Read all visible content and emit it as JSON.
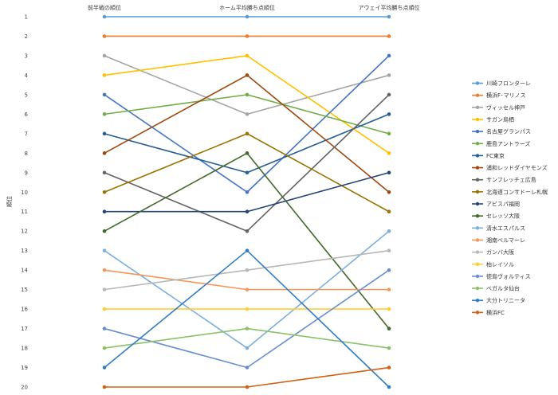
{
  "chart_data": {
    "type": "line",
    "title": "",
    "xlabel": "",
    "ylabel": "順位",
    "categories": [
      "前半戦の順位",
      "ホーム平均勝ち点順位",
      "アウェイ平均勝ち点順位"
    ],
    "y_ticks": [
      "1",
      "2",
      "3",
      "4",
      "5",
      "6",
      "7",
      "8",
      "9",
      "10",
      "11",
      "12",
      "13",
      "14",
      "15",
      "16",
      "17",
      "18",
      "19",
      "20"
    ],
    "ylim": [
      1,
      20
    ],
    "y_inverted": true,
    "grid": false,
    "legend_position": "right",
    "series": [
      {
        "name": "川崎フロンターレ",
        "values": [
          1,
          1,
          1
        ],
        "color": "#5b9bd5"
      },
      {
        "name": "横浜F･マリノス",
        "values": [
          2,
          2,
          2
        ],
        "color": "#ed7d31"
      },
      {
        "name": "ヴィッセル神戸",
        "values": [
          3,
          6,
          4
        ],
        "color": "#a5a5a5"
      },
      {
        "name": "サガン鳥栖",
        "values": [
          4,
          3,
          8
        ],
        "color": "#ffc000"
      },
      {
        "name": "名古屋グランパス",
        "values": [
          5,
          10,
          3
        ],
        "color": "#4472c4"
      },
      {
        "name": "鹿島アントラーズ",
        "values": [
          6,
          5,
          7
        ],
        "color": "#70ad47"
      },
      {
        "name": "FC東京",
        "values": [
          7,
          9,
          6
        ],
        "color": "#255e91"
      },
      {
        "name": "浦和レッドダイヤモンズ",
        "values": [
          8,
          4,
          10
        ],
        "color": "#9e480e"
      },
      {
        "name": "サンフレッチェ広島",
        "values": [
          9,
          12,
          5
        ],
        "color": "#636363"
      },
      {
        "name": "北海道コンサドーレ札幌",
        "values": [
          10,
          7,
          11
        ],
        "color": "#997300"
      },
      {
        "name": "アビスパ福岡",
        "values": [
          11,
          11,
          9
        ],
        "color": "#264478"
      },
      {
        "name": "セレッソ大阪",
        "values": [
          12,
          8,
          17
        ],
        "color": "#43682b"
      },
      {
        "name": "清水エスパルス",
        "values": [
          13,
          18,
          12
        ],
        "color": "#7cafdd"
      },
      {
        "name": "湘南ベルマーレ",
        "values": [
          14,
          15,
          15
        ],
        "color": "#f1975a"
      },
      {
        "name": "ガンバ大阪",
        "values": [
          15,
          14,
          13
        ],
        "color": "#b7b7b7"
      },
      {
        "name": "柏レイソル",
        "values": [
          16,
          16,
          16
        ],
        "color": "#ffcd33"
      },
      {
        "name": "徳島ヴォルティス",
        "values": [
          17,
          19,
          14
        ],
        "color": "#698ed0"
      },
      {
        "name": "ベガルタ仙台",
        "values": [
          18,
          17,
          18
        ],
        "color": "#8cc168"
      },
      {
        "name": "大分トリニータ",
        "values": [
          19,
          13,
          20
        ],
        "color": "#327dc2"
      },
      {
        "name": "横浜FC",
        "values": [
          20,
          20,
          19
        ],
        "color": "#d26012"
      }
    ]
  }
}
